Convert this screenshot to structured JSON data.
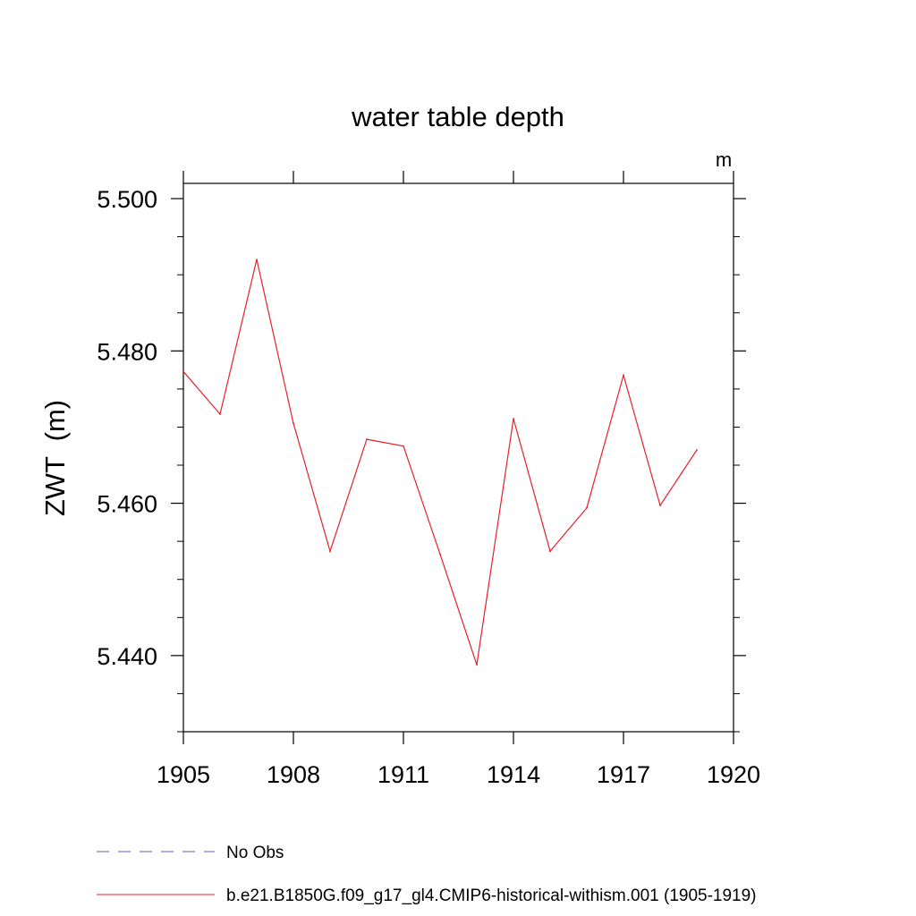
{
  "chart_data": {
    "type": "line",
    "title": "water table depth",
    "units_label": "m",
    "ylabel": "ZWT  (m)",
    "xlabel": "",
    "xlim": [
      1905,
      1920
    ],
    "ylim": [
      5.43,
      5.502
    ],
    "x_ticks": [
      1905,
      1908,
      1911,
      1914,
      1917,
      1920
    ],
    "x_tick_labels": [
      "1905",
      "1908",
      "1911",
      "1914",
      "1917",
      "1920"
    ],
    "y_ticks": [
      5.44,
      5.46,
      5.48,
      5.5
    ],
    "y_tick_labels": [
      "5.440",
      "5.460",
      "5.480",
      "5.500"
    ],
    "y_minor_step": 0.005,
    "grid": false,
    "legend_position": "bottom",
    "series": [
      {
        "name": "No Obs",
        "color": "#6a5acd",
        "dash": "dashed",
        "x": [],
        "y": []
      },
      {
        "name": "b.e21.B1850G.f09_g17_gl4.CMIP6-historical-withism.001 (1905-1919)",
        "color": "#e8202a",
        "dash": "solid",
        "x": [
          1905,
          1906,
          1907,
          1908,
          1909,
          1910,
          1911,
          1912,
          1913,
          1914,
          1915,
          1916,
          1917,
          1918,
          1919
        ],
        "y": [
          5.4773,
          5.4717,
          5.492,
          5.4705,
          5.4537,
          5.4684,
          5.4675,
          5.4533,
          5.4388,
          5.4711,
          5.4537,
          5.4594,
          5.4768,
          5.4597,
          5.467
        ]
      }
    ]
  }
}
